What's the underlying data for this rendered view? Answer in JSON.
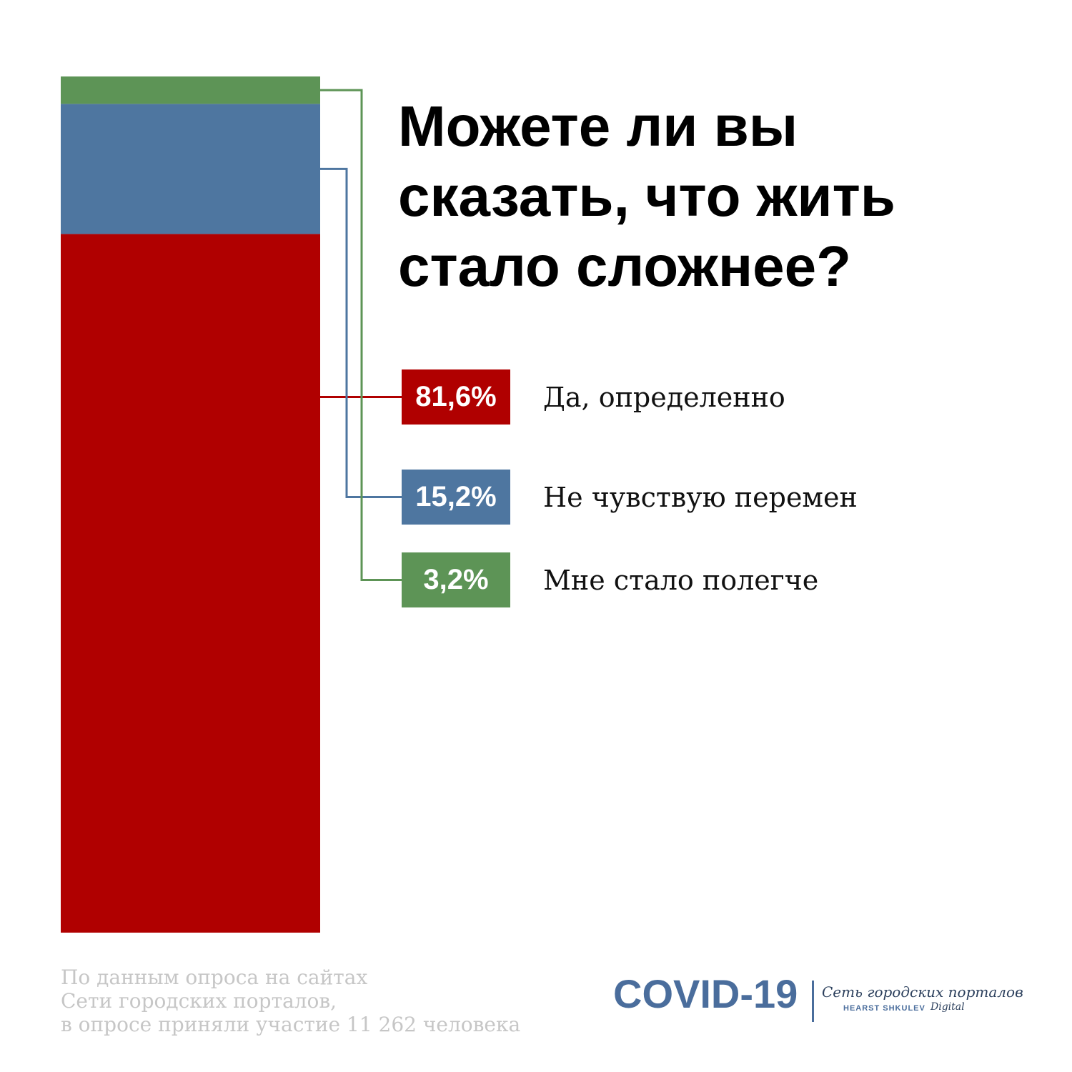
{
  "chart_data": {
    "type": "bar",
    "title": "Можете ли вы сказать, что жить стало сложнее?",
    "series": [
      {
        "name": "Да, определенно",
        "color": "#b00000",
        "values": [
          81.6
        ],
        "value_labels": [
          "81,6%"
        ]
      },
      {
        "name": "Не чувствую перемен",
        "color": "#4e76a0",
        "values": [
          15.2
        ],
        "value_labels": [
          "15,2%"
        ]
      },
      {
        "name": "Мне стало полегче",
        "color": "#5d9456",
        "values": [
          3.2
        ],
        "value_labels": [
          "3,2%"
        ]
      }
    ],
    "source": [
      "По данным опроса на сайтах",
      "Сети городских порталов,",
      "в опросе приняли участие 11 262 человека"
    ]
  },
  "logo": {
    "mark": "COVID-19",
    "network": "Сеть городских порталов",
    "brand": "HEARST SHKULEV",
    "suffix": "Digital"
  }
}
